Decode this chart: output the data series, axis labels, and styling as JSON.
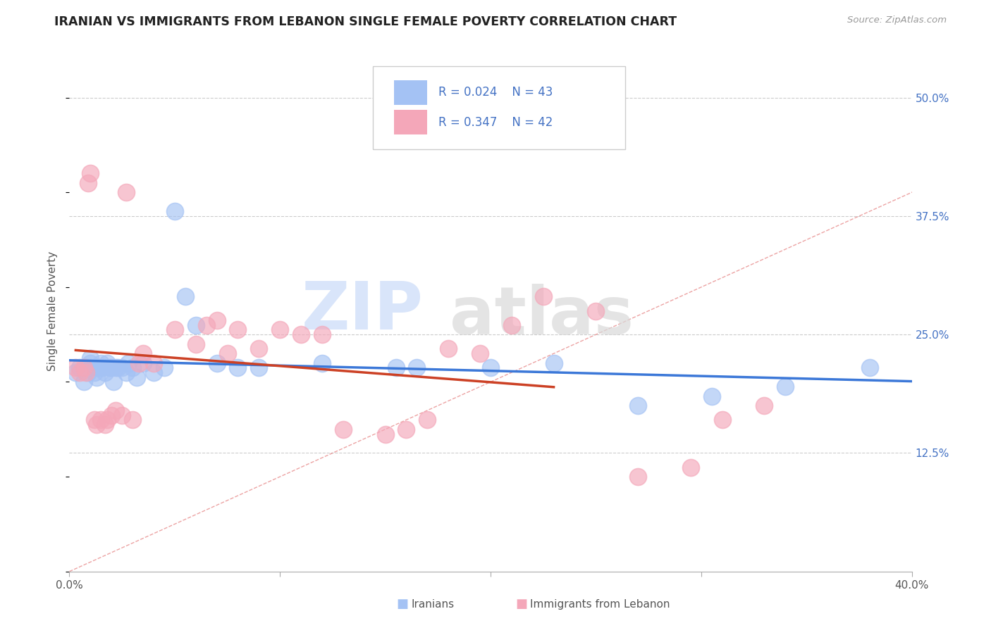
{
  "title": "IRANIAN VS IMMIGRANTS FROM LEBANON SINGLE FEMALE POVERTY CORRELATION CHART",
  "source": "Source: ZipAtlas.com",
  "ylabel": "Single Female Poverty",
  "xlim": [
    0.0,
    0.4
  ],
  "ylim": [
    0.0,
    0.55
  ],
  "color_iranian": "#a4c2f4",
  "color_lebanon": "#f4a7b9",
  "color_trendline1": "#3c78d8",
  "color_trendline2": "#cc4125",
  "color_diagonal": "#f4a4a4",
  "iranians_x": [
    0.003,
    0.005,
    0.007,
    0.008,
    0.009,
    0.01,
    0.01,
    0.01,
    0.012,
    0.013,
    0.014,
    0.015,
    0.016,
    0.017,
    0.018,
    0.019,
    0.02,
    0.021,
    0.022,
    0.023,
    0.025,
    0.027,
    0.028,
    0.03,
    0.032,
    0.035,
    0.04,
    0.045,
    0.05,
    0.055,
    0.06,
    0.07,
    0.08,
    0.09,
    0.12,
    0.155,
    0.165,
    0.2,
    0.23,
    0.27,
    0.305,
    0.34,
    0.38
  ],
  "iranians_y": [
    0.21,
    0.215,
    0.2,
    0.215,
    0.21,
    0.215,
    0.22,
    0.225,
    0.21,
    0.205,
    0.215,
    0.22,
    0.215,
    0.21,
    0.22,
    0.215,
    0.215,
    0.2,
    0.215,
    0.215,
    0.215,
    0.21,
    0.22,
    0.215,
    0.205,
    0.22,
    0.21,
    0.215,
    0.38,
    0.29,
    0.26,
    0.22,
    0.215,
    0.215,
    0.22,
    0.215,
    0.215,
    0.215,
    0.22,
    0.175,
    0.185,
    0.195,
    0.215
  ],
  "lebanon_x": [
    0.003,
    0.005,
    0.007,
    0.008,
    0.009,
    0.01,
    0.012,
    0.013,
    0.015,
    0.017,
    0.018,
    0.02,
    0.022,
    0.025,
    0.027,
    0.03,
    0.033,
    0.035,
    0.04,
    0.05,
    0.06,
    0.065,
    0.07,
    0.075,
    0.08,
    0.09,
    0.1,
    0.11,
    0.12,
    0.13,
    0.15,
    0.16,
    0.17,
    0.18,
    0.195,
    0.21,
    0.225,
    0.25,
    0.27,
    0.295,
    0.31,
    0.33
  ],
  "lebanon_y": [
    0.215,
    0.21,
    0.215,
    0.21,
    0.41,
    0.42,
    0.16,
    0.155,
    0.16,
    0.155,
    0.16,
    0.165,
    0.17,
    0.165,
    0.4,
    0.16,
    0.22,
    0.23,
    0.22,
    0.255,
    0.24,
    0.26,
    0.265,
    0.23,
    0.255,
    0.235,
    0.255,
    0.25,
    0.25,
    0.15,
    0.145,
    0.15,
    0.16,
    0.235,
    0.23,
    0.26,
    0.29,
    0.275,
    0.1,
    0.11,
    0.16,
    0.175
  ]
}
